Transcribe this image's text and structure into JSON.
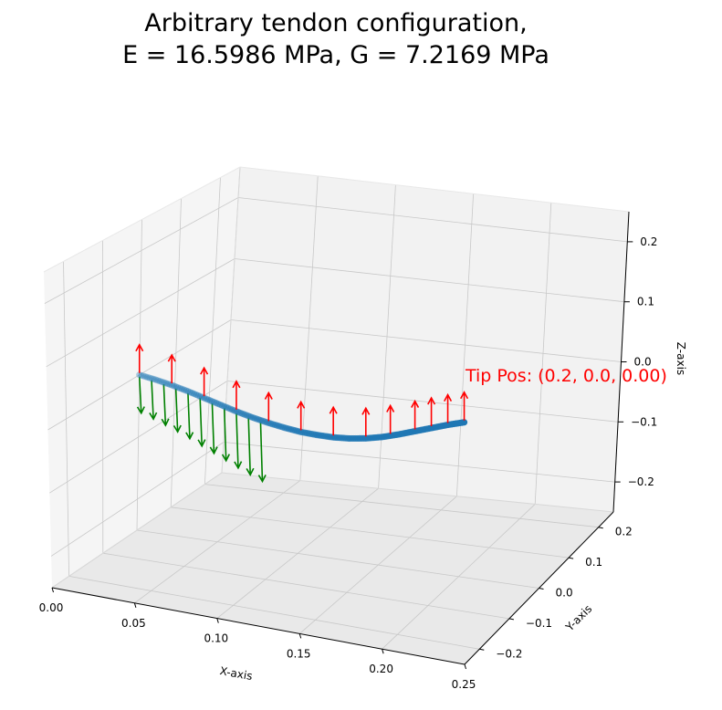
{
  "chart_data": {
    "type": "line3d",
    "title": "Arbitrary tendon configuration,",
    "subtitle": "E = 16.5986 MPa, G = 7.2169 MPa",
    "xlabel": "X-axis",
    "ylabel": "Y-axis",
    "zlabel": "Z-axis",
    "x_ticks": [
      "0.00",
      "0.05",
      "0.10",
      "0.15",
      "0.20",
      "0.25"
    ],
    "y_ticks": [
      "−0.2",
      "−0.1",
      "0.0",
      "0.1",
      "0.2"
    ],
    "z_ticks": [
      "−0.2",
      "−0.1",
      "0.0",
      "0.1",
      "0.2"
    ],
    "xlim": [
      0,
      0.25
    ],
    "ylim": [
      -0.25,
      0.25
    ],
    "zlim": [
      -0.25,
      0.25
    ],
    "grid": true,
    "annotation": "Tip Pos: (0.2, 0.0, 0.00)",
    "colors": {
      "backbone": "#1f77b4",
      "force_up": "#ff0000",
      "force_down": "#008000"
    },
    "backbone": {
      "x": [
        0.0,
        0.01,
        0.02,
        0.03,
        0.04,
        0.05,
        0.06,
        0.07,
        0.08,
        0.09,
        0.1,
        0.11,
        0.12,
        0.13,
        0.14,
        0.15,
        0.16,
        0.17,
        0.18,
        0.19,
        0.2
      ],
      "y": [
        0,
        0,
        0,
        0,
        0,
        0,
        0,
        0,
        0,
        0,
        0,
        0,
        0,
        0,
        0,
        0,
        0,
        0,
        0,
        0,
        0
      ],
      "z": [
        0.0,
        -0.004,
        -0.009,
        -0.015,
        -0.022,
        -0.029,
        -0.036,
        -0.042,
        -0.047,
        -0.051,
        -0.054,
        -0.055,
        -0.055,
        -0.053,
        -0.049,
        -0.043,
        -0.035,
        -0.026,
        -0.017,
        -0.008,
        0.0
      ]
    },
    "up_arrows_x": [
      0.0,
      0.02,
      0.04,
      0.06,
      0.08,
      0.1,
      0.12,
      0.14,
      0.155,
      0.17,
      0.18,
      0.19,
      0.2
    ],
    "down_arrows_x": [
      0.0,
      0.0075,
      0.015,
      0.0225,
      0.03,
      0.0375,
      0.045,
      0.0525,
      0.06,
      0.0675,
      0.075
    ]
  }
}
